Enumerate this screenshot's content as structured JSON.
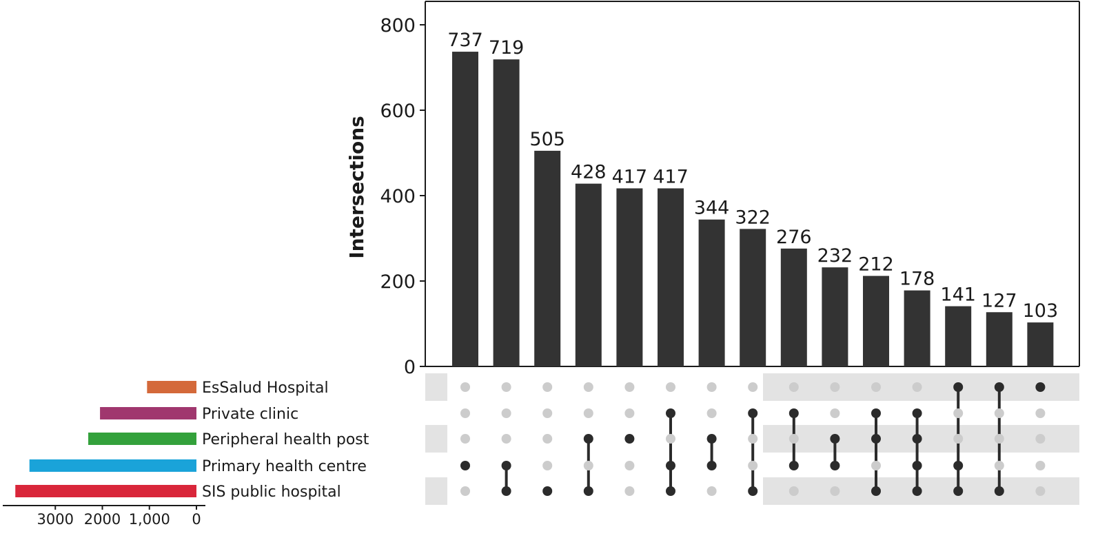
{
  "chart_data": {
    "type": "bar",
    "chart_kind": "upset",
    "ylabel": "Intersections",
    "ylim": [
      0,
      800
    ],
    "yticks": [
      "0",
      "200",
      "400",
      "600",
      "800"
    ],
    "values": [
      737,
      719,
      505,
      428,
      417,
      417,
      344,
      322,
      276,
      232,
      212,
      178,
      141,
      127,
      103
    ],
    "sets": [
      {
        "name": "EsSalud Hospital",
        "color": "#d4693a",
        "size": 1050
      },
      {
        "name": "Private clinic",
        "color": "#a0376e",
        "size": 2050
      },
      {
        "name": "Peripheral health post",
        "color": "#33a13b",
        "size": 2300
      },
      {
        "name": "Primary health centre",
        "color": "#1aa3d9",
        "size": 3550
      },
      {
        "name": "SIS public hospital",
        "color": "#d9263a",
        "size": 3850
      }
    ],
    "membership": [
      [
        3
      ],
      [
        3,
        4
      ],
      [
        4
      ],
      [
        2,
        4
      ],
      [
        2
      ],
      [
        1,
        3,
        4
      ],
      [
        2,
        3
      ],
      [
        1,
        4
      ],
      [
        1,
        3
      ],
      [
        2,
        3
      ],
      [
        1,
        2,
        4
      ],
      [
        1,
        2,
        3,
        4
      ],
      [
        0,
        3,
        4
      ],
      [
        0,
        4
      ],
      [
        0
      ]
    ],
    "set_size_xlim": [
      4000,
      0
    ],
    "set_size_ticks": [
      "3000",
      "2000",
      "1,000",
      "0"
    ],
    "set_size_tick_values": [
      3000,
      2000,
      1000,
      0
    ],
    "colors": {
      "bar": "#333333",
      "dot_active": "#2b2b2b",
      "dot_inactive": "#cccccc",
      "band": "#e3e3e3"
    }
  }
}
